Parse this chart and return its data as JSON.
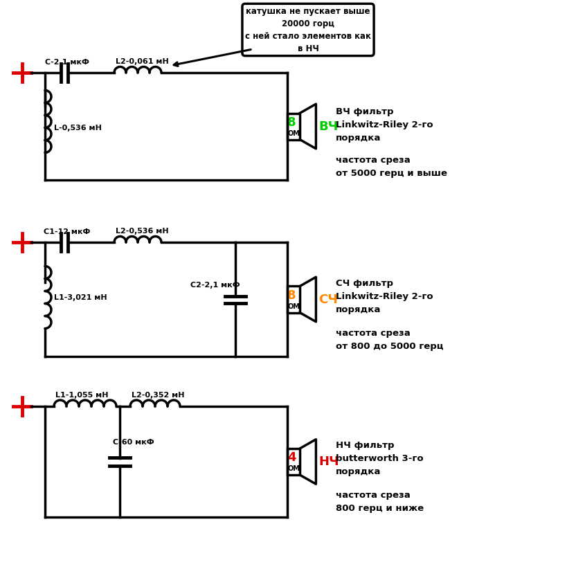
{
  "bg_color": "#ffffff",
  "line_color": "#000000",
  "line_width": 2.5,
  "red_color": "#dd0000",
  "green_color": "#00cc00",
  "orange_color": "#ff8800",
  "circuit1": {
    "label_C": "С-2,1 мкФ",
    "label_L2": "L2-0,061 мН",
    "label_L": "L-0,536 мН",
    "ohm": "8",
    "ohm_color": "#00cc00",
    "tag": "ВЧ",
    "tag_color": "#00cc00",
    "title": "ВЧ фильтр\nLinkwitz-Riley 2-го\nпорядка",
    "freq": "частота среза\nот 5000 герц и выше",
    "bubble": "катушка не пускает выше\n20000 горц\nс ней стало элементов как\nв НЧ"
  },
  "circuit2": {
    "label_C1": "С1-12 мкФ",
    "label_L2": "L2-0,536 мН",
    "label_L1": "L1-3,021 мН",
    "label_C2": "С2-2,1 мкФ",
    "ohm": "8",
    "ohm_color": "#ff8800",
    "tag": "СЧ",
    "tag_color": "#ff8800",
    "title": "СЧ фильтр\nLinkwitz-Riley 2-го\nпорядка",
    "freq": "частота среза\nот 800 до 5000 герц"
  },
  "circuit3": {
    "label_L1": "L1-1,055 мН",
    "label_L2": "L2-0,352 мН",
    "label_C": "С-60 мкФ",
    "ohm": "4",
    "ohm_color": "#dd0000",
    "tag": "НЧ",
    "tag_color": "#dd0000",
    "title": "НЧ фильтр\nbutterworth 3-го\nпорядка",
    "freq": "частота среза\n800 герц и ниже"
  }
}
